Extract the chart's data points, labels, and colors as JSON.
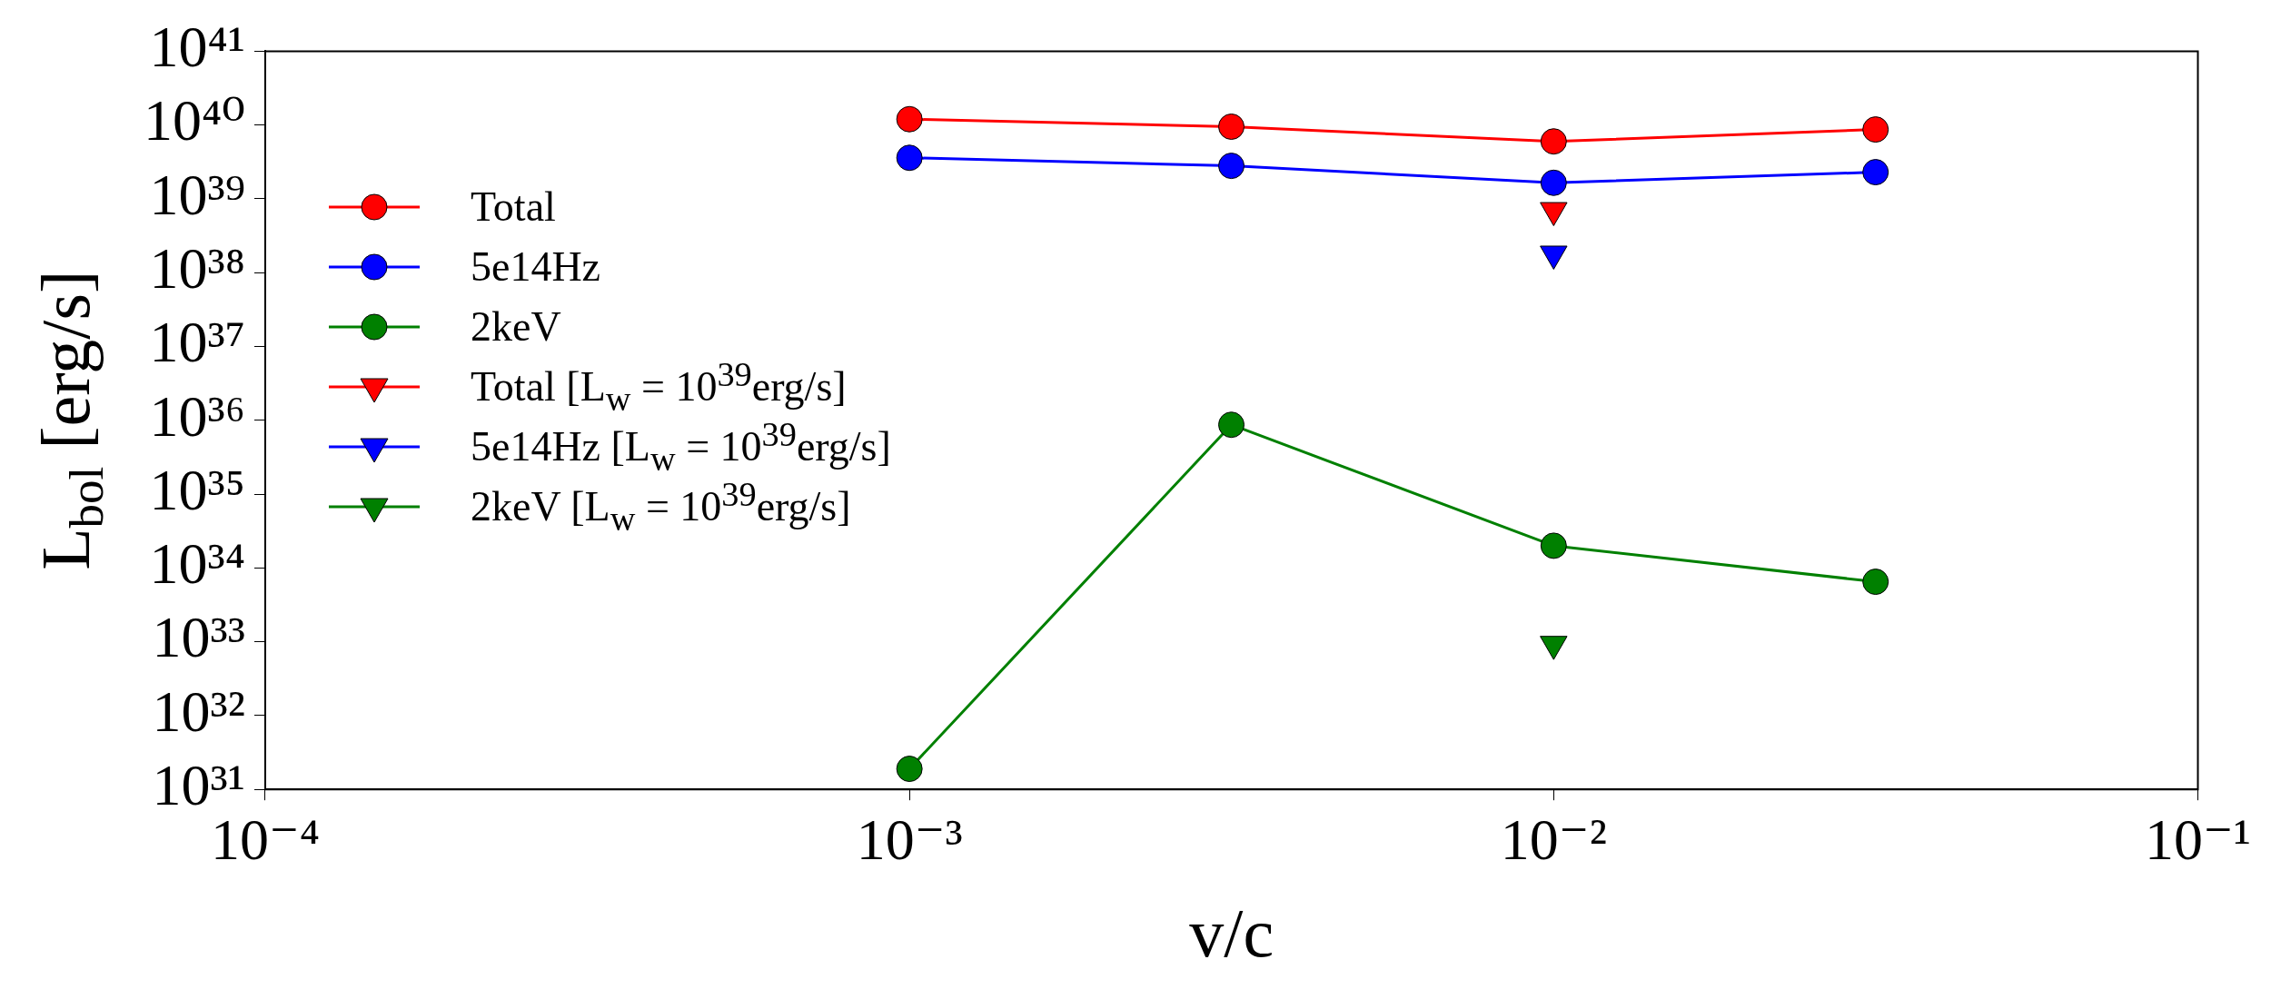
{
  "chart_data": {
    "type": "line",
    "xlabel": "v/c",
    "ylabel": "L$_{bol}$ [erg/s]",
    "log": "xy",
    "x": [
      0.001,
      0.00316,
      0.01,
      0.0316
    ],
    "series": [
      {
        "name": "Total",
        "color": "#ff0000",
        "values": [
          1.2e+40,
          9.5e+39,
          6e+39,
          8.7e+39
        ]
      },
      {
        "name": "5e14Hz",
        "color": "#0000ff",
        "values": [
          3.6e+39,
          2.8e+39,
          1.65e+39,
          2.3e+39
        ]
      },
      {
        "name": "2keV",
        "color": "#008000",
        "values": [
          1.9e+31,
          8.7e+35,
          2e+34,
          6.5e+33
        ]
      },
      {
        "name": "Total [L$_{w}$ = 10$^{39}$erg/s]",
        "color": "#ff0000",
        "marker": "triangle",
        "values": [
          null,
          null,
          7e+38,
          null
        ]
      },
      {
        "name": "5e14Hz [L$_{w}$ = 10$^{39}$erg/s]",
        "color": "#0000ff",
        "marker": "triangle",
        "values": [
          null,
          null,
          1.8e+38,
          null
        ]
      },
      {
        "name": "2keV [L$_{w}$ = 10$^{39}$erg/s]",
        "color": "#008000",
        "marker": "triangle",
        "values": [
          null,
          null,
          9.3e+32,
          null
        ]
      }
    ],
    "marker": "circle",
    "xlim": [
      0.0001,
      0.1
    ],
    "ylim": [
      1e+31,
      1e+41
    ],
    "xticks": [
      {
        "value": 0.0001,
        "label": "10⁻⁴"
      },
      {
        "value": 0.001,
        "label": "10⁻³"
      },
      {
        "value": 0.01,
        "label": "10⁻²"
      },
      {
        "value": 0.1,
        "label": "10⁻¹"
      }
    ],
    "yticks": [
      {
        "value": 1e+31,
        "label": "10³¹"
      },
      {
        "value": 1e+32,
        "label": "10³²"
      },
      {
        "value": 1e+33,
        "label": "10³³"
      },
      {
        "value": 1e+34,
        "label": "10³⁴"
      },
      {
        "value": 1e+35,
        "label": "10³⁵"
      },
      {
        "value": 1e+36,
        "label": "10³⁶"
      },
      {
        "value": 1e+37,
        "label": "10³⁷"
      },
      {
        "value": 1e+38,
        "label": "10³⁸"
      },
      {
        "value": 1e+39,
        "label": "10³⁹"
      },
      {
        "value": 1e+40,
        "label": "10⁴⁰"
      },
      {
        "value": 1e+41,
        "label": "10⁴¹"
      }
    ],
    "grid": false,
    "legend": "left",
    "line_style": "solid"
  }
}
